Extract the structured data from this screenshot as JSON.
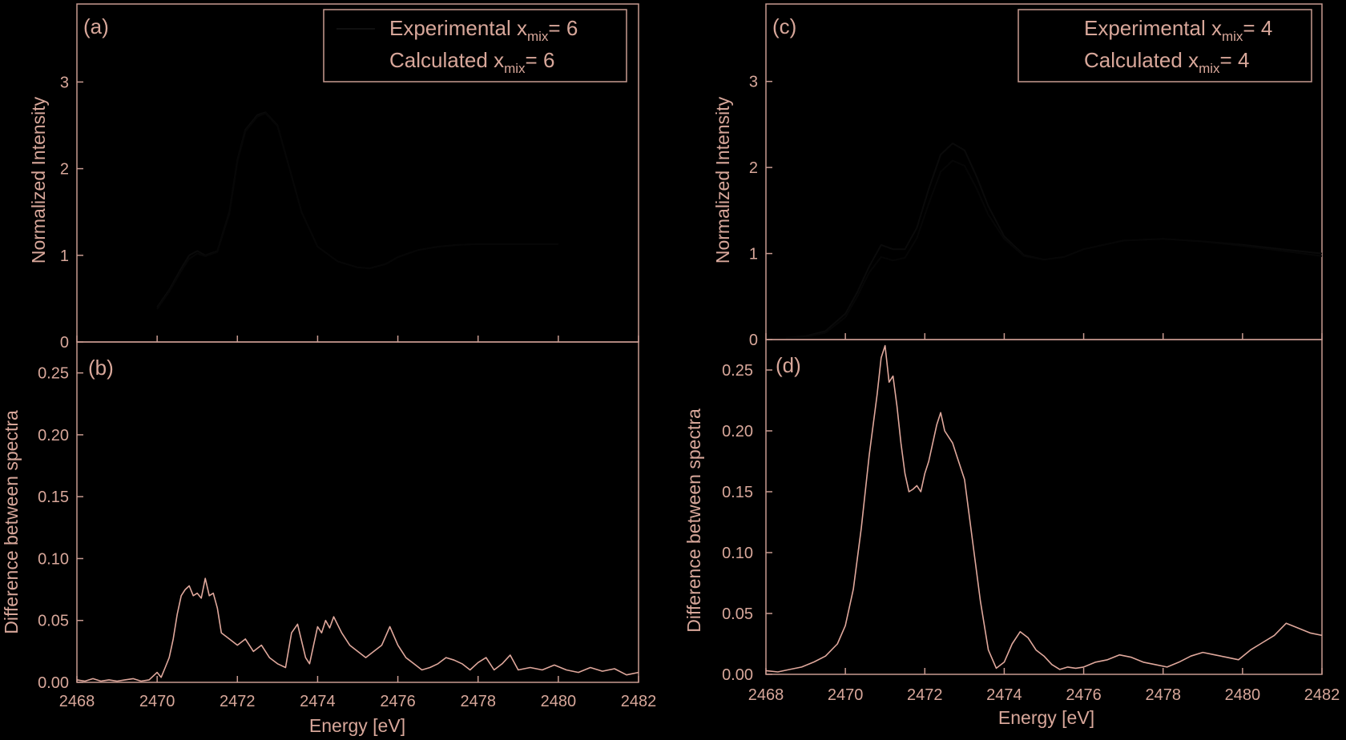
{
  "figure": {
    "colors": {
      "background": "#000000",
      "axis": "#c89a90",
      "text": "#d8a79a",
      "difference_line": "#e0a89c",
      "spectrum_line": "#0a0a0a"
    },
    "x_label": "Energy [eV]",
    "x_ticks": [
      "2468",
      "2470",
      "2472",
      "2474",
      "2476",
      "2478",
      "2480",
      "2482"
    ]
  },
  "chart_data": [
    {
      "type": "line",
      "panel": "(a)",
      "ylabel": "Normalized Intensity",
      "xlim": [
        2468,
        2482
      ],
      "ylim": [
        0,
        3.9
      ],
      "y_ticks": [
        "0",
        "1",
        "2",
        "3"
      ],
      "legend": {
        "position": "top-right",
        "entries": [
          {
            "prefix": "Experimental x",
            "sub": "mix",
            "suffix": "= 6"
          },
          {
            "prefix": "Calculated x",
            "sub": "mix",
            "suffix": "= 6"
          }
        ]
      },
      "series": [
        {
          "name": "Experimental xmix= 6",
          "x": [
            2470.0,
            2470.3,
            2470.6,
            2470.8,
            2471.0,
            2471.2,
            2471.5,
            2471.8,
            2472.0,
            2472.2,
            2472.5,
            2472.7,
            2473.0,
            2473.3,
            2473.6,
            2474.0,
            2474.5,
            2475.0,
            2475.3,
            2475.7,
            2476.0,
            2476.5,
            2477.0,
            2477.5,
            2478.0,
            2479.0,
            2480.0
          ],
          "y": [
            0.4,
            0.6,
            0.85,
            1.0,
            1.05,
            1.0,
            1.05,
            1.5,
            2.1,
            2.45,
            2.62,
            2.65,
            2.5,
            2.0,
            1.5,
            1.1,
            0.93,
            0.86,
            0.85,
            0.9,
            0.98,
            1.06,
            1.1,
            1.12,
            1.13,
            1.13,
            1.13
          ]
        },
        {
          "name": "Calculated xmix= 6",
          "x": [
            2470.0,
            2470.3,
            2470.6,
            2470.8,
            2471.0,
            2471.2,
            2471.5,
            2471.8,
            2472.0,
            2472.2,
            2472.5,
            2472.7,
            2473.0,
            2473.3,
            2473.6,
            2474.0,
            2474.5,
            2475.0,
            2475.3,
            2475.7,
            2476.0,
            2476.5,
            2477.0,
            2477.5,
            2478.0,
            2479.0,
            2480.0
          ],
          "y": [
            0.38,
            0.58,
            0.82,
            0.96,
            1.02,
            0.99,
            1.04,
            1.48,
            2.08,
            2.43,
            2.6,
            2.64,
            2.49,
            2.0,
            1.5,
            1.1,
            0.93,
            0.86,
            0.85,
            0.9,
            0.98,
            1.06,
            1.1,
            1.12,
            1.13,
            1.13,
            1.13
          ]
        }
      ]
    },
    {
      "type": "line",
      "panel": "(b)",
      "ylabel": "Difference between spectra",
      "xlim": [
        2468,
        2482
      ],
      "ylim": [
        0,
        0.275
      ],
      "y_ticks": [
        "0.00",
        "0.05",
        "0.10",
        "0.15",
        "0.20",
        "0.25"
      ],
      "series": [
        {
          "name": "Difference",
          "x": [
            2468.0,
            2468.2,
            2468.4,
            2468.6,
            2468.8,
            2469.0,
            2469.2,
            2469.4,
            2469.6,
            2469.8,
            2470.0,
            2470.1,
            2470.2,
            2470.3,
            2470.4,
            2470.5,
            2470.6,
            2470.7,
            2470.8,
            2470.9,
            2471.0,
            2471.1,
            2471.2,
            2471.3,
            2471.4,
            2471.5,
            2471.6,
            2471.8,
            2472.0,
            2472.2,
            2472.4,
            2472.6,
            2472.8,
            2473.0,
            2473.2,
            2473.35,
            2473.5,
            2473.7,
            2473.8,
            2473.9,
            2474.0,
            2474.1,
            2474.2,
            2474.3,
            2474.4,
            2474.6,
            2474.8,
            2475.0,
            2475.2,
            2475.4,
            2475.6,
            2475.8,
            2476.0,
            2476.2,
            2476.4,
            2476.6,
            2476.8,
            2477.0,
            2477.2,
            2477.4,
            2477.6,
            2477.8,
            2478.0,
            2478.2,
            2478.4,
            2478.6,
            2478.8,
            2479.0,
            2479.3,
            2479.6,
            2479.9,
            2480.2,
            2480.5,
            2480.8,
            2481.1,
            2481.4,
            2481.7,
            2482.0
          ],
          "y": [
            0.002,
            0.001,
            0.003,
            0.001,
            0.002,
            0.001,
            0.002,
            0.003,
            0.001,
            0.002,
            0.008,
            0.004,
            0.012,
            0.02,
            0.035,
            0.055,
            0.07,
            0.075,
            0.078,
            0.07,
            0.072,
            0.068,
            0.084,
            0.07,
            0.072,
            0.06,
            0.04,
            0.035,
            0.03,
            0.035,
            0.025,
            0.03,
            0.02,
            0.015,
            0.012,
            0.04,
            0.047,
            0.02,
            0.015,
            0.03,
            0.045,
            0.04,
            0.05,
            0.044,
            0.053,
            0.04,
            0.03,
            0.025,
            0.02,
            0.025,
            0.03,
            0.045,
            0.03,
            0.02,
            0.015,
            0.01,
            0.012,
            0.015,
            0.02,
            0.018,
            0.015,
            0.01,
            0.016,
            0.02,
            0.01,
            0.015,
            0.022,
            0.01,
            0.012,
            0.01,
            0.014,
            0.01,
            0.008,
            0.012,
            0.009,
            0.011,
            0.006,
            0.008
          ]
        }
      ]
    },
    {
      "type": "line",
      "panel": "(c)",
      "ylabel": "Normalized Intensity",
      "xlim": [
        2468,
        2482
      ],
      "ylim": [
        0,
        3.9
      ],
      "y_ticks": [
        "0",
        "1",
        "2",
        "3"
      ],
      "legend": {
        "position": "top-right",
        "entries": [
          {
            "prefix": "Experimental x",
            "sub": "mix",
            "suffix": "= 4"
          },
          {
            "prefix": "Calculated x",
            "sub": "mix",
            "suffix": "= 4"
          }
        ]
      },
      "series": [
        {
          "name": "Experimental xmix= 4",
          "x": [
            2468.5,
            2469.0,
            2469.5,
            2470.0,
            2470.3,
            2470.6,
            2470.9,
            2471.2,
            2471.5,
            2471.8,
            2472.1,
            2472.4,
            2472.7,
            2473.0,
            2473.3,
            2473.6,
            2474.0,
            2474.5,
            2475.0,
            2475.5,
            2476.0,
            2477.0,
            2478.0,
            2479.0,
            2480.0,
            2481.0,
            2482.0
          ],
          "y": [
            0.02,
            0.04,
            0.1,
            0.3,
            0.55,
            0.85,
            1.1,
            1.05,
            1.05,
            1.3,
            1.75,
            2.15,
            2.28,
            2.2,
            1.9,
            1.55,
            1.2,
            0.98,
            0.93,
            0.96,
            1.05,
            1.15,
            1.17,
            1.14,
            1.1,
            1.05,
            1.0
          ]
        },
        {
          "name": "Calculated xmix= 4",
          "x": [
            2468.5,
            2469.0,
            2469.5,
            2470.0,
            2470.3,
            2470.6,
            2470.9,
            2471.2,
            2471.5,
            2471.8,
            2472.1,
            2472.4,
            2472.7,
            2473.0,
            2473.3,
            2473.6,
            2474.0,
            2474.5,
            2475.0,
            2475.5,
            2476.0,
            2477.0,
            2478.0,
            2479.0,
            2480.0,
            2481.0,
            2482.0
          ],
          "y": [
            0.02,
            0.03,
            0.08,
            0.26,
            0.5,
            0.78,
            0.96,
            0.92,
            0.95,
            1.18,
            1.58,
            1.95,
            2.08,
            2.02,
            1.76,
            1.45,
            1.17,
            0.97,
            0.93,
            0.96,
            1.05,
            1.15,
            1.17,
            1.14,
            1.09,
            1.03,
            0.97
          ]
        }
      ]
    },
    {
      "type": "line",
      "panel": "(d)",
      "ylabel": "Difference between spectra",
      "xlim": [
        2468,
        2482
      ],
      "ylim": [
        0,
        0.275
      ],
      "y_ticks": [
        "0.00",
        "0.05",
        "0.10",
        "0.15",
        "0.20",
        "0.25"
      ],
      "series": [
        {
          "name": "Difference",
          "x": [
            2468.0,
            2468.3,
            2468.6,
            2468.9,
            2469.2,
            2469.5,
            2469.8,
            2470.0,
            2470.2,
            2470.4,
            2470.6,
            2470.8,
            2470.9,
            2471.0,
            2471.1,
            2471.2,
            2471.3,
            2471.4,
            2471.5,
            2471.6,
            2471.7,
            2471.8,
            2471.9,
            2472.0,
            2472.1,
            2472.2,
            2472.3,
            2472.4,
            2472.5,
            2472.6,
            2472.7,
            2472.8,
            2473.0,
            2473.2,
            2473.4,
            2473.6,
            2473.8,
            2474.0,
            2474.2,
            2474.4,
            2474.6,
            2474.8,
            2475.0,
            2475.2,
            2475.4,
            2475.6,
            2475.8,
            2476.0,
            2476.3,
            2476.6,
            2476.9,
            2477.2,
            2477.5,
            2477.8,
            2478.1,
            2478.4,
            2478.7,
            2479.0,
            2479.3,
            2479.6,
            2479.9,
            2480.2,
            2480.5,
            2480.8,
            2481.1,
            2481.4,
            2481.7,
            2482.0
          ],
          "y": [
            0.003,
            0.002,
            0.004,
            0.006,
            0.01,
            0.015,
            0.025,
            0.04,
            0.07,
            0.12,
            0.18,
            0.23,
            0.26,
            0.27,
            0.24,
            0.245,
            0.22,
            0.19,
            0.165,
            0.15,
            0.152,
            0.155,
            0.15,
            0.165,
            0.175,
            0.19,
            0.205,
            0.215,
            0.2,
            0.195,
            0.19,
            0.18,
            0.16,
            0.11,
            0.06,
            0.02,
            0.005,
            0.01,
            0.025,
            0.035,
            0.03,
            0.02,
            0.015,
            0.008,
            0.004,
            0.006,
            0.005,
            0.006,
            0.01,
            0.012,
            0.016,
            0.014,
            0.01,
            0.008,
            0.006,
            0.01,
            0.015,
            0.018,
            0.016,
            0.014,
            0.012,
            0.02,
            0.026,
            0.032,
            0.042,
            0.038,
            0.034,
            0.032
          ]
        }
      ]
    }
  ]
}
